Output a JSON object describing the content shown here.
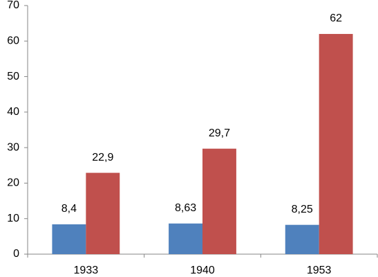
{
  "chart_data": {
    "type": "bar",
    "categories": [
      "1933",
      "1940",
      "1953"
    ],
    "series": [
      {
        "color": "#4f81bd",
        "values": [
          8.4,
          8.63,
          8.25
        ],
        "value_labels": [
          "8,4",
          "8,63",
          "8,25"
        ]
      },
      {
        "color": "#c0504d",
        "values": [
          22.9,
          29.7,
          62
        ],
        "value_labels": [
          "22,9",
          "29,7",
          "62"
        ]
      }
    ],
    "ylim": [
      0,
      70
    ],
    "yticks": [
      0,
      10,
      20,
      30,
      40,
      50,
      60,
      70
    ],
    "grid": false
  }
}
